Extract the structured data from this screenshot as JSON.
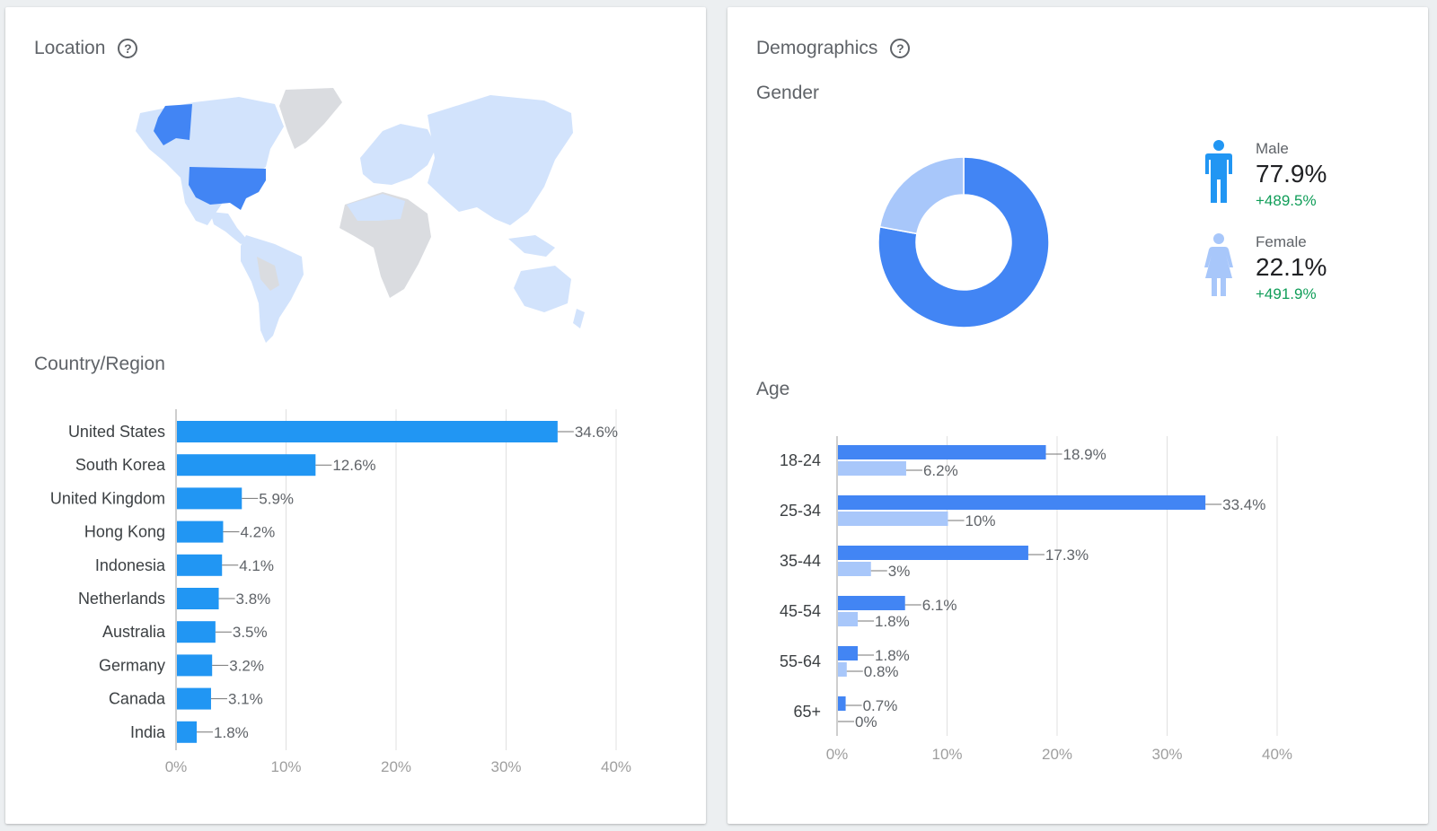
{
  "location": {
    "title": "Location",
    "section_label": "Country/Region",
    "colors": {
      "bar": "#2196f3",
      "map_highlight": "#4285f4",
      "map_light": "#d2e3fc",
      "map_nodata": "#dadce0"
    }
  },
  "demographics": {
    "title": "Demographics",
    "gender_label": "Gender",
    "age_label": "Age",
    "gender": {
      "male": {
        "label": "Male",
        "value": "77.9%",
        "change": "+489.5%",
        "icon": "male-person-icon"
      },
      "female": {
        "label": "Female",
        "value": "22.1%",
        "change": "+491.9%",
        "icon": "female-person-icon"
      }
    }
  },
  "chart_data": [
    {
      "type": "bar",
      "orientation": "horizontal",
      "categories": [
        "United States",
        "South Korea",
        "United Kingdom",
        "Hong Kong",
        "Indonesia",
        "Netherlands",
        "Australia",
        "Germany",
        "Canada",
        "India"
      ],
      "values": [
        34.6,
        12.6,
        5.9,
        4.2,
        4.1,
        3.8,
        3.5,
        3.2,
        3.1,
        1.8
      ],
      "labels": [
        "34.6%",
        "12.6%",
        "5.9%",
        "4.2%",
        "4.1%",
        "3.8%",
        "3.5%",
        "3.2%",
        "3.1%",
        "1.8%"
      ],
      "xlim": [
        0,
        40
      ],
      "ticks": [
        "0%",
        "10%",
        "20%",
        "30%",
        "40%"
      ],
      "grid": true,
      "color": "#2196f3"
    },
    {
      "type": "pie",
      "donut": true,
      "categories": [
        "Male",
        "Female"
      ],
      "values": [
        77.9,
        22.1
      ],
      "colors": [
        "#4285f4",
        "#a8c7fa"
      ]
    },
    {
      "type": "bar",
      "orientation": "horizontal",
      "categories": [
        "18-24",
        "25-34",
        "35-44",
        "45-54",
        "55-64",
        "65+"
      ],
      "series": [
        {
          "values": [
            18.9,
            33.4,
            17.3,
            6.1,
            1.8,
            0.7
          ],
          "labels": [
            "18.9%",
            "33.4%",
            "17.3%",
            "6.1%",
            "1.8%",
            "0.7%"
          ],
          "color": "#4285f4"
        },
        {
          "values": [
            6.2,
            10,
            3,
            1.8,
            0.8,
            0
          ],
          "labels": [
            "6.2%",
            "10%",
            "3%",
            "1.8%",
            "0.8%",
            "0%"
          ],
          "color": "#a8c7fa"
        }
      ],
      "xlim": [
        0,
        40
      ],
      "ticks": [
        "0%",
        "10%",
        "20%",
        "30%",
        "40%"
      ],
      "grid": true
    }
  ]
}
